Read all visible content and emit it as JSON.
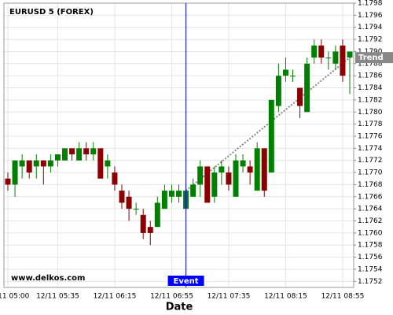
{
  "chart_data": {
    "type": "candlestick",
    "title": "EURUSD 5 (FOREX)",
    "x_label": "Date",
    "watermark": "www.delkos.com",
    "categories": [
      "12/11 05:00",
      null,
      null,
      null,
      null,
      null,
      null,
      "12/11 05:35",
      null,
      null,
      null,
      null,
      null,
      null,
      null,
      "12/11 06:15",
      null,
      null,
      null,
      null,
      null,
      null,
      null,
      "12/11 06:55",
      null,
      null,
      null,
      null,
      null,
      null,
      null,
      "12/11 07:35",
      null,
      null,
      null,
      null,
      null,
      null,
      null,
      "12/11 08:15",
      null,
      null,
      null,
      null,
      null,
      null,
      null,
      "12/11 08:55",
      null
    ],
    "open": [
      1.1769,
      1.1768,
      1.1771,
      1.1772,
      1.1771,
      1.1772,
      1.1771,
      1.1772,
      1.1772,
      1.1774,
      1.1772,
      1.1774,
      1.1773,
      1.1774,
      1.1771,
      1.177,
      1.1767,
      1.1766,
      1.1764,
      1.1763,
      1.1761,
      1.1761,
      1.1764,
      1.1766,
      1.1766,
      1.1764,
      1.1766,
      1.1768,
      1.1771,
      1.1766,
      1.177,
      1.177,
      1.1766,
      1.1771,
      1.1771,
      1.1767,
      1.1774,
      1.177,
      1.1781,
      1.1786,
      1.1786,
      1.1784,
      1.178,
      1.1789,
      1.1791,
      1.1789,
      1.1788,
      1.1791,
      1.1789
    ],
    "high": [
      1.177,
      1.1772,
      1.1773,
      1.1772,
      1.1773,
      1.1772,
      1.1773,
      1.1773,
      1.1774,
      1.1774,
      1.1775,
      1.1775,
      1.1775,
      1.1774,
      1.1773,
      1.1771,
      1.1768,
      1.1767,
      1.1765,
      1.1764,
      1.1762,
      1.1766,
      1.1768,
      1.1768,
      1.1768,
      1.1768,
      1.1769,
      1.1772,
      1.1771,
      1.1771,
      1.1772,
      1.1771,
      1.1773,
      1.1773,
      1.1772,
      1.1775,
      1.1774,
      1.1782,
      1.1788,
      1.1789,
      1.1787,
      1.1784,
      1.1789,
      1.1792,
      1.1792,
      1.179,
      1.1791,
      1.1792,
      1.179
    ],
    "low": [
      1.1767,
      1.1766,
      1.1769,
      1.1769,
      1.1769,
      1.1768,
      1.177,
      1.1771,
      1.1772,
      1.1772,
      1.1772,
      1.1772,
      1.1772,
      1.1769,
      1.1769,
      1.1767,
      1.1764,
      1.1762,
      1.1763,
      1.1759,
      1.1758,
      1.1761,
      1.1764,
      1.1765,
      1.1765,
      1.1764,
      1.1766,
      1.1766,
      1.1765,
      1.1765,
      1.1768,
      1.1767,
      1.1766,
      1.177,
      1.1768,
      1.1767,
      1.1766,
      1.177,
      1.178,
      1.1785,
      1.1785,
      1.1779,
      1.178,
      1.1788,
      1.1788,
      1.1787,
      1.1787,
      1.1785,
      1.1783
    ],
    "close": [
      1.1768,
      1.1772,
      1.1772,
      1.177,
      1.1772,
      1.1771,
      1.1772,
      1.1773,
      1.1774,
      1.1773,
      1.1774,
      1.1773,
      1.1774,
      1.1769,
      1.1772,
      1.1768,
      1.1765,
      1.1764,
      1.1764,
      1.176,
      1.176,
      1.1765,
      1.1767,
      1.1767,
      1.1767,
      1.1767,
      1.1768,
      1.1771,
      1.1765,
      1.177,
      1.1771,
      1.1768,
      1.1772,
      1.1772,
      1.177,
      1.1774,
      1.1767,
      1.1782,
      1.1786,
      1.1787,
      1.1786,
      1.1781,
      1.1788,
      1.1791,
      1.1789,
      1.1789,
      1.179,
      1.1786,
      1.179
    ],
    "up_color": "#008000",
    "down_color": "#8b0000",
    "ylim": [
      1.1751,
      1.1798
    ],
    "yticks": [
      1.1752,
      1.1754,
      1.1756,
      1.1758,
      {
        "value": 1.176,
        "label": "1.1760"
      },
      1.1762,
      1.1764,
      1.1766,
      1.1768,
      {
        "value": 1.177,
        "label": "1.1770"
      },
      1.1772,
      1.1774,
      1.1776,
      1.1778,
      {
        "value": 1.178,
        "label": "1.1780"
      },
      1.1782,
      1.1784,
      1.1786,
      1.1788,
      {
        "value": 1.179,
        "label": "1.1790"
      },
      1.1792,
      1.1794,
      1.1796,
      1.1798
    ],
    "grid": true,
    "events": [
      {
        "x": 25,
        "label": "Event",
        "color": "#0000ff"
      }
    ],
    "trend": {
      "label": "Trend",
      "x": [
        25,
        48
      ],
      "y": [
        1.1767,
        1.1789
      ],
      "color": "#888888"
    }
  }
}
